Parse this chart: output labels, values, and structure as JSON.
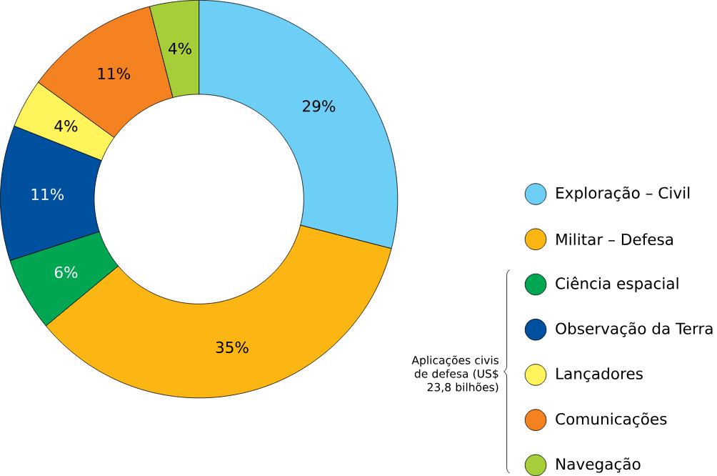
{
  "chart_data": {
    "type": "donut",
    "categories": [
      "Exploração – Civil",
      "Militar – Defesa",
      "Ciência espacial",
      "Observação da Terra",
      "Lançadores",
      "Comunicações",
      "Navegação"
    ],
    "values": [
      29,
      35,
      6,
      11,
      4,
      11,
      4
    ],
    "colors": [
      "#6dcff6",
      "#fbb614",
      "#00a651",
      "#0050a0",
      "#fff45c",
      "#f58220",
      "#a6ce39"
    ],
    "value_labels": [
      "29%",
      "35%",
      "6%",
      "11%",
      "4%",
      "11%",
      "4%"
    ],
    "legend": "right",
    "annotations": [
      "Aplicações civis de defesa (US$ 23,8 bilhões)"
    ]
  }
}
